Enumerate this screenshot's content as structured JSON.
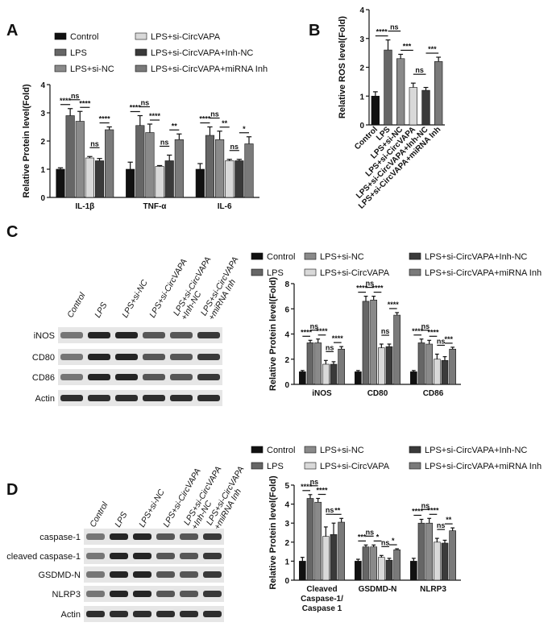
{
  "chart_data": [
    {
      "type": "bar",
      "panel": "A",
      "ylabel": "Relative Protein level(Fold)",
      "categories": [
        "IL-1β",
        "TNF-α",
        "IL-6"
      ],
      "series": [
        {
          "name": "Control",
          "color": "#111111",
          "values": [
            1.0,
            1.0,
            1.0
          ],
          "errors": [
            0.05,
            0.25,
            0.2
          ]
        },
        {
          "name": "LPS",
          "color": "#666666",
          "values": [
            2.9,
            2.55,
            2.2
          ],
          "errors": [
            0.25,
            0.35,
            0.3
          ]
        },
        {
          "name": "LPS+si-NC",
          "color": "#8a8a8a",
          "values": [
            2.7,
            2.3,
            2.05
          ],
          "errors": [
            0.35,
            0.3,
            0.3
          ]
        },
        {
          "name": "LPS+si-CircVAPA",
          "color": "#d9d9d9",
          "values": [
            1.4,
            1.1,
            1.3
          ],
          "errors": [
            0.05,
            0.03,
            0.05
          ]
        },
        {
          "name": "LPS+si-CircVAPA+Inh-NC",
          "color": "#3a3a3a",
          "values": [
            1.3,
            1.3,
            1.3
          ],
          "errors": [
            0.08,
            0.2,
            0.05
          ]
        },
        {
          "name": "LPS+si-CircVAPA+miRNA Inh",
          "color": "#7a7a7a",
          "values": [
            2.4,
            2.05,
            1.9
          ],
          "errors": [
            0.1,
            0.2,
            0.25
          ]
        }
      ],
      "ylim": [
        0,
        4
      ],
      "yticks": [
        0,
        1,
        2,
        3,
        4
      ],
      "annotations": [
        [
          "****",
          "ns",
          "****",
          "ns",
          "****"
        ],
        [
          "****",
          "ns",
          "****",
          "ns",
          "**"
        ],
        [
          "****",
          "ns",
          "**",
          "ns",
          "*"
        ]
      ]
    },
    {
      "type": "bar",
      "panel": "B",
      "ylabel": "Relative ROS level(Fold)",
      "categories": [
        "Control",
        "LPS",
        "LPS+si-NC",
        "LPS+si-CircVAPA",
        "LPS+si-CircVAPA+Inh-NC",
        "LPS+si-CircVAPA+miRNA Inh"
      ],
      "values": [
        1.0,
        2.6,
        2.3,
        1.3,
        1.2,
        2.2
      ],
      "errors": [
        0.15,
        0.35,
        0.15,
        0.15,
        0.1,
        0.15
      ],
      "colors": [
        "#111111",
        "#666666",
        "#8a8a8a",
        "#d9d9d9",
        "#3a3a3a",
        "#7a7a7a"
      ],
      "ylim": [
        0,
        4
      ],
      "yticks": [
        0,
        1,
        2,
        3,
        4
      ],
      "annotations": [
        "****",
        "ns",
        "***",
        "ns",
        "***"
      ]
    },
    {
      "type": "bar",
      "panel": "C",
      "ylabel": "Relative Protein level(Fold)",
      "categories": [
        "iNOS",
        "CD80",
        "CD86"
      ],
      "series": [
        {
          "name": "Control",
          "color": "#111111",
          "values": [
            1.0,
            1.0,
            1.0
          ],
          "errors": [
            0.1,
            0.1,
            0.1
          ]
        },
        {
          "name": "LPS",
          "color": "#666666",
          "values": [
            3.3,
            6.6,
            3.3
          ],
          "errors": [
            0.2,
            0.4,
            0.3
          ]
        },
        {
          "name": "LPS+si-NC",
          "color": "#8a8a8a",
          "values": [
            3.3,
            6.7,
            3.2
          ],
          "errors": [
            0.3,
            0.3,
            0.3
          ]
        },
        {
          "name": "LPS+si-CircVAPA",
          "color": "#d9d9d9",
          "values": [
            1.6,
            2.9,
            2.0
          ],
          "errors": [
            0.3,
            0.3,
            0.4
          ]
        },
        {
          "name": "LPS+si-CircVAPA+Inh-NC",
          "color": "#3a3a3a",
          "values": [
            1.6,
            3.0,
            1.9
          ],
          "errors": [
            0.2,
            0.2,
            0.3
          ]
        },
        {
          "name": "LPS+si-CircVAPA+miRNA Inh",
          "color": "#7a7a7a",
          "values": [
            2.8,
            5.5,
            2.8
          ],
          "errors": [
            0.2,
            0.2,
            0.15
          ]
        }
      ],
      "ylim": [
        0,
        8
      ],
      "yticks": [
        0,
        2,
        4,
        6,
        8
      ],
      "annotations": [
        [
          "****",
          "ns",
          "****",
          "ns",
          "****"
        ],
        [
          "****",
          "ns",
          "****",
          "ns",
          "****"
        ],
        [
          "****",
          "ns",
          "****",
          "ns",
          "***"
        ]
      ]
    },
    {
      "type": "bar",
      "panel": "D",
      "ylabel": "Relative Protein level(Fold)",
      "categories": [
        [
          "Cleaved",
          "Caspase-1/",
          "Caspase 1"
        ],
        "GSDMD-N",
        "NLRP3"
      ],
      "series": [
        {
          "name": "Control",
          "color": "#111111",
          "values": [
            1.0,
            1.0,
            1.0
          ],
          "errors": [
            0.2,
            0.1,
            0.15
          ]
        },
        {
          "name": "LPS",
          "color": "#666666",
          "values": [
            4.3,
            1.75,
            3.0
          ],
          "errors": [
            0.2,
            0.1,
            0.2
          ]
        },
        {
          "name": "LPS+si-NC",
          "color": "#8a8a8a",
          "values": [
            4.1,
            1.75,
            3.0
          ],
          "errors": [
            0.2,
            0.1,
            0.25
          ]
        },
        {
          "name": "LPS+si-CircVAPA",
          "color": "#d9d9d9",
          "values": [
            2.3,
            1.2,
            2.0
          ],
          "errors": [
            0.5,
            0.1,
            0.2
          ]
        },
        {
          "name": "LPS+si-CircVAPA+Inh-NC",
          "color": "#3a3a3a",
          "values": [
            2.4,
            1.05,
            1.95
          ],
          "errors": [
            0.6,
            0.1,
            0.15
          ]
        },
        {
          "name": "LPS+si-CircVAPA+miRNA Inh",
          "color": "#7a7a7a",
          "values": [
            3.05,
            1.6,
            2.6
          ],
          "errors": [
            0.2,
            0.05,
            0.15
          ]
        }
      ],
      "ylim": [
        0,
        5
      ],
      "yticks": [
        0,
        1,
        2,
        3,
        4,
        5
      ],
      "annotations": [
        [
          "****",
          "ns",
          "****",
          "ns",
          "**"
        ],
        [
          "***",
          "ns",
          "*",
          "ns",
          "*"
        ],
        [
          "****",
          "ns",
          "****",
          "ns",
          "**"
        ]
      ]
    }
  ],
  "blots": [
    {
      "lanes": [
        [
          "Control"
        ],
        [
          "LPS"
        ],
        [
          "LPS+si-NC"
        ],
        [
          "LPS+si-CircVAPA"
        ],
        [
          "LPS+si-CircVAPA",
          "+Inh-NC"
        ],
        [
          "LPS+si-CircVAPA",
          "+miRNA Inh"
        ]
      ],
      "rows": [
        "iNOS",
        "CD80",
        "CD86",
        "Actin"
      ]
    },
    {
      "lanes": [
        [
          "Control"
        ],
        [
          "LPS"
        ],
        [
          "LPS+si-NC"
        ],
        [
          "LPS+si-CircVAPA"
        ],
        [
          "LPS+si-CircVAPA",
          "+Inh-NC"
        ],
        [
          "LPS+si-CircVAPA",
          "+miRNA Inh"
        ]
      ],
      "rows": [
        "caspase-1",
        "cleaved caspase-1",
        "GSDMD-N",
        "NLRP3",
        "Actin"
      ]
    }
  ]
}
